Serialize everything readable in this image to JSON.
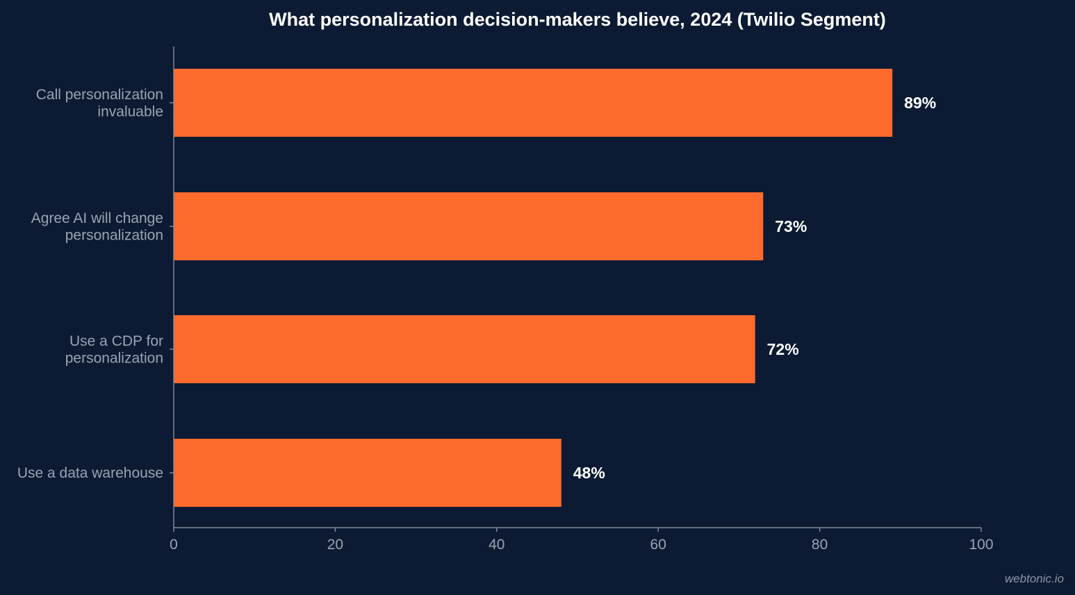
{
  "chart_data": {
    "type": "bar",
    "orientation": "horizontal",
    "title": "What personalization decision-makers believe, 2024 (Twilio Segment)",
    "categories": [
      [
        "Call personalization",
        "invaluable"
      ],
      [
        "Agree AI will change",
        "personalization"
      ],
      [
        "Use a CDP for",
        "personalization"
      ],
      [
        "Use a data warehouse"
      ]
    ],
    "values": [
      89,
      73,
      72,
      48
    ],
    "data_labels": [
      "89%",
      "73%",
      "72%",
      "48%"
    ],
    "xlim": [
      0,
      100
    ],
    "x_ticks": [
      0,
      20,
      40,
      60,
      80,
      100
    ],
    "xlabel": "",
    "ylabel": "",
    "grid": false,
    "colors": {
      "bar": "#ff6b2c",
      "background": "#0c1b33",
      "axis": "#7f8898",
      "label_text": "#9aa3b3",
      "value_text": "#ffffff"
    }
  },
  "watermark": "webtonic.io"
}
